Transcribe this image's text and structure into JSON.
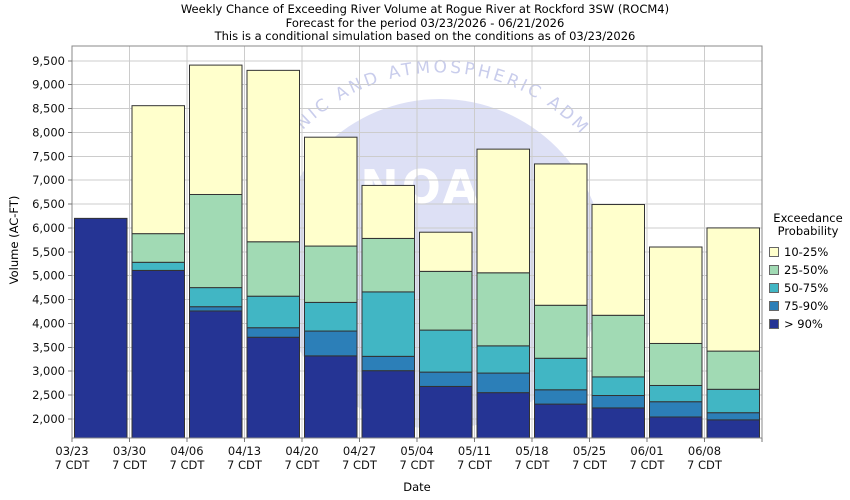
{
  "chart_data": {
    "type": "bar",
    "stacked": true,
    "title": "Weekly Chance of Exceeding River Volume at Rogue River at Rockford 3SW (ROCM4)",
    "subtitle1": "Forecast for the period 03/23/2026 - 06/21/2026",
    "subtitle2": "This is a conditional simulation based on the conditions as of 03/23/2026",
    "xlabel": "Date",
    "ylabel": "Volume (AC-FT)",
    "ylim": [
      1600,
      9810
    ],
    "grid": true,
    "legend_position": "right",
    "yticks": [
      2000,
      2500,
      3000,
      3500,
      4000,
      4500,
      5000,
      5500,
      6000,
      6500,
      7000,
      7500,
      8000,
      8500,
      9000,
      9500
    ],
    "ytick_labels": [
      "2,000",
      "2,500",
      "3,000",
      "3,500",
      "4,000",
      "4,500",
      "5,000",
      "5,500",
      "6,000",
      "6,500",
      "7,000",
      "7,500",
      "8,000",
      "8,500",
      "9,000",
      "9,500"
    ],
    "categories": [
      "03/23",
      "03/30",
      "04/06",
      "04/13",
      "04/20",
      "04/27",
      "05/04",
      "05/11",
      "05/18",
      "05/25",
      "06/01",
      "06/08"
    ],
    "tick_sublabel": "7 CDT",
    "bar_outline": "#333333",
    "series": [
      {
        "name": "> 90%",
        "color": "#253494",
        "cumulative_tops": [
          6200,
          5110,
          4260,
          3710,
          3320,
          3010,
          2680,
          2550,
          2310,
          2230,
          2040,
          1980
        ]
      },
      {
        "name": "75-90%",
        "color": "#2C7FB8",
        "cumulative_tops": [
          6200,
          5110,
          4350,
          3910,
          3840,
          3310,
          2980,
          2960,
          2610,
          2490,
          2360,
          2130
        ]
      },
      {
        "name": "50-75%",
        "color": "#41B6C4",
        "cumulative_tops": [
          6200,
          5280,
          4750,
          4570,
          4440,
          4660,
          3860,
          3530,
          3270,
          2880,
          2700,
          2620
        ]
      },
      {
        "name": "25-50%",
        "color": "#A1DAB4",
        "cumulative_tops": [
          6200,
          5880,
          6700,
          5710,
          5620,
          5780,
          5090,
          5060,
          4380,
          4170,
          3580,
          3420
        ]
      },
      {
        "name": "10-25%",
        "color": "#FFFFCC",
        "cumulative_tops": [
          6200,
          8560,
          9410,
          9300,
          7900,
          6890,
          5910,
          7650,
          7340,
          6490,
          5600,
          6000
        ]
      }
    ],
    "legend": {
      "title": [
        "Exceedance",
        "Probability"
      ],
      "items": [
        {
          "label": "10-25%",
          "color": "#FFFFCC"
        },
        {
          "label": "25-50%",
          "color": "#A1DAB4"
        },
        {
          "label": "50-75%",
          "color": "#41B6C4"
        },
        {
          "label": "75-90%",
          "color": "#2C7FB8"
        },
        {
          "label": "> 90%",
          "color": "#253494"
        }
      ]
    }
  },
  "watermark": {
    "main_text": "NOAA",
    "arc_text": "ANIC AND ATMOSPHERIC ADMI",
    "circle_color": "#dde0f5",
    "arc_color": "#c9cdec",
    "letter_color": "#ffffff"
  },
  "colors": {
    "gridline": "#cccccc",
    "axis_border": "#888888",
    "tick": "#777777",
    "text": "#111111"
  }
}
